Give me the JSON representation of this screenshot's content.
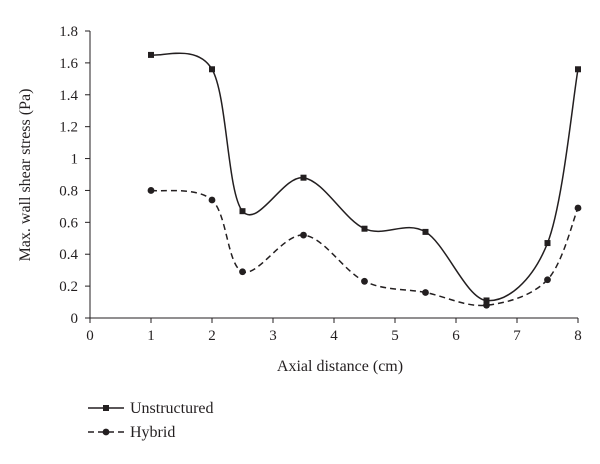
{
  "chart_data": {
    "type": "line",
    "xlabel": "Axial distance (cm)",
    "ylabel": "Max. wall shear stress (Pa)",
    "xlim": [
      0,
      8
    ],
    "ylim": [
      0,
      1.8
    ],
    "xticks": [
      "0",
      "1",
      "2",
      "3",
      "4",
      "5",
      "6",
      "7",
      "8"
    ],
    "yticks": [
      "0",
      "0.2",
      "0.4",
      "0.6",
      "0.8",
      "1",
      "1.2",
      "1.4",
      "1.6",
      "1.8"
    ],
    "grid": false,
    "legend_position": "bottom-left",
    "series": [
      {
        "name": "Unstructured",
        "line_style": "solid",
        "marker": "square",
        "color": "#231f20",
        "x": [
          1,
          2,
          2.5,
          3.5,
          4.5,
          5.5,
          6.5,
          7.5,
          8
        ],
        "y": [
          1.65,
          1.56,
          0.67,
          0.88,
          0.56,
          0.54,
          0.11,
          0.47,
          1.56
        ]
      },
      {
        "name": "Hybrid",
        "line_style": "dashed",
        "marker": "circle",
        "color": "#231f20",
        "x": [
          1,
          2,
          2.5,
          3.5,
          4.5,
          5.5,
          6.5,
          7.5,
          8
        ],
        "y": [
          0.8,
          0.74,
          0.29,
          0.52,
          0.23,
          0.16,
          0.08,
          0.24,
          0.69
        ]
      }
    ]
  }
}
